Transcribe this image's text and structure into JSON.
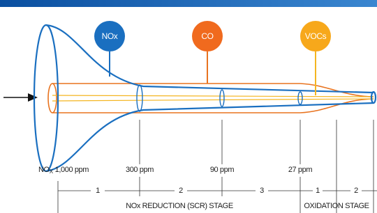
{
  "markers": [
    {
      "label": "NOx"
    },
    {
      "label": "CO"
    },
    {
      "label": "VOCs"
    }
  ],
  "concentrations": [
    {
      "species": "NO",
      "subscript": "X",
      "amount": "1,000 ppm"
    },
    {
      "amount": "300 ppm"
    },
    {
      "amount": "90 ppm"
    },
    {
      "amount": "27 ppm"
    }
  ],
  "stages": [
    {
      "label": "NOx REDUCTION (SCR) STAGE",
      "steps": [
        "1",
        "2",
        "3"
      ]
    },
    {
      "label": "OXIDATION STAGE",
      "steps": [
        "1",
        "2"
      ]
    }
  ]
}
